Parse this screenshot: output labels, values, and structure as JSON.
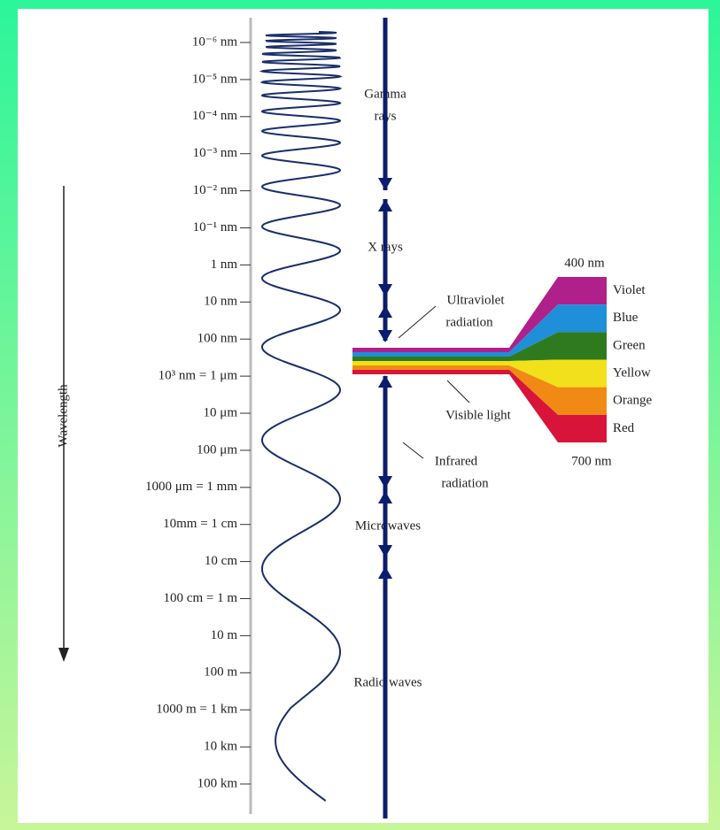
{
  "scale": {
    "axis_label": "Wavelength",
    "labels": [
      "10⁻⁶ nm",
      "10⁻⁵ nm",
      "10⁻⁴ nm",
      "10⁻³ nm",
      "10⁻² nm",
      "10⁻¹ nm",
      "1 nm",
      "10 nm",
      "100 nm",
      "10³ nm = 1 μm",
      "10 μm",
      "100 μm",
      "1000 μm = 1 mm",
      "10mm = 1 cm",
      "10 cm",
      "100 cm = 1 m",
      "10 m",
      "100 m",
      "1000 m = 1 km",
      "10 km",
      "100 km"
    ]
  },
  "bands": {
    "gamma": [
      "Gamma",
      "rays"
    ],
    "xray": "X rays",
    "ultraviolet": [
      "Ultraviolet",
      "radiation"
    ],
    "visible": "Visible light",
    "infrared": [
      "Infrared",
      "radiation"
    ],
    "microwaves": "Microwaves",
    "radio": "Radio waves"
  },
  "visible": {
    "top": "400 nm",
    "bottom": "700 nm",
    "colors": [
      {
        "name": "Violet",
        "color": "#b0208a"
      },
      {
        "name": "Blue",
        "color": "#1e8fd8"
      },
      {
        "name": "Green",
        "color": "#2f7a1e"
      },
      {
        "name": "Yellow",
        "color": "#f2e01a"
      },
      {
        "name": "Orange",
        "color": "#f08a14"
      },
      {
        "name": "Red",
        "color": "#d8143a"
      }
    ]
  }
}
